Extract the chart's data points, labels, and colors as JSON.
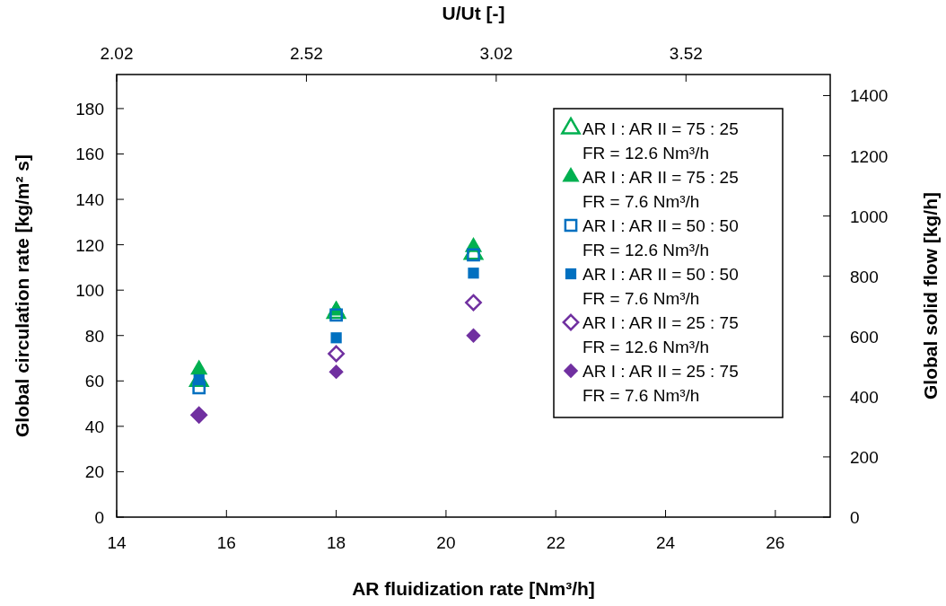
{
  "chart_data": {
    "type": "scatter",
    "xlabel": "AR  fluidization rate [Nm³/h]",
    "ylabel": "Global circulation rate [kg/m² s]",
    "y2label": "Global solid flow [kg/h]",
    "x2label": "U/Ut [-]",
    "xlim": [
      14,
      27
    ],
    "xticks": [
      14,
      16,
      18,
      20,
      22,
      24,
      26
    ],
    "ylim": [
      0,
      195
    ],
    "yticks": [
      0,
      20,
      40,
      60,
      80,
      100,
      120,
      140,
      160,
      180
    ],
    "y2lim": [
      0,
      1470
    ],
    "y2ticks": [
      0,
      200,
      400,
      600,
      800,
      1000,
      1200,
      1400
    ],
    "x2lim": [
      2.02,
      3.9
    ],
    "x2ticks": [
      2.02,
      2.52,
      3.02,
      3.52
    ],
    "legend": "top right",
    "grid": false,
    "x": [
      15.5,
      18,
      20.5
    ],
    "series": [
      {
        "name": "AR I : AR II = 75 : 25\nFR = 12.6 Nm³/h",
        "color": "#00b050",
        "marker": "triangle-open",
        "values": [
          60,
          90,
          116
        ]
      },
      {
        "name": "AR I : AR II = 75 : 25\nFR = 7.6 Nm³/h",
        "color": "#00b050",
        "marker": "triangle",
        "values": [
          65,
          91,
          119
        ]
      },
      {
        "name": "AR I : AR II = 50 : 50\nFR = 12.6 Nm³/h",
        "color": "#0070c0",
        "marker": "square-open",
        "values": [
          57,
          89,
          115.5
        ]
      },
      {
        "name": "AR I : AR II = 50 : 50\nFR = 7.6 Nm³/h",
        "color": "#0070c0",
        "marker": "square",
        "values": [
          60.5,
          79,
          107.5
        ]
      },
      {
        "name": "AR I : AR II = 25 : 75\nFR = 12.6 Nm³/h",
        "color": "#7030a0",
        "marker": "diamond-open",
        "values": [
          45,
          72,
          94.5
        ]
      },
      {
        "name": "AR I : AR II = 25 : 75\nFR = 7.6 Nm³/h",
        "color": "#7030a0",
        "marker": "diamond",
        "values": [
          45,
          64,
          80
        ]
      }
    ]
  }
}
